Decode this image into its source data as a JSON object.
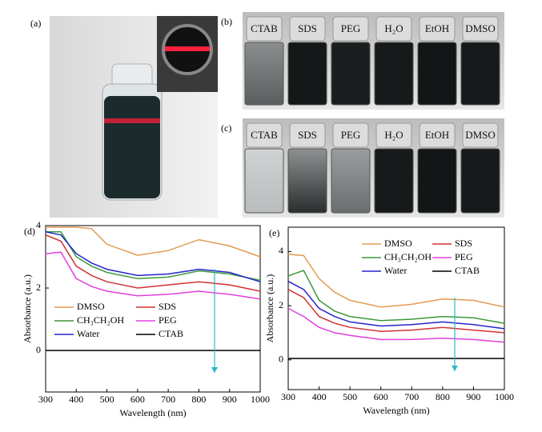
{
  "panels": {
    "a": "(a)",
    "b": "(b)",
    "c": "(c)"
  },
  "vials_b": [
    "CTAB",
    "SDS",
    "PEG",
    "H₂O",
    "EtOH",
    "DMSO"
  ],
  "vials_c": [
    "CTAB",
    "SDS",
    "PEG",
    "H₂O",
    "EtOH",
    "DMSO"
  ],
  "chart_data": [
    {
      "type": "line",
      "panel_label": "(d)",
      "xlabel": "Wavelength (nm)",
      "ylabel": "Absorbance (a.u.)",
      "x": [
        300,
        350,
        400,
        450,
        500,
        600,
        700,
        800,
        900,
        1000
      ],
      "xlim": [
        300,
        1000
      ],
      "xticks": [
        300,
        400,
        500,
        600,
        700,
        800,
        900,
        1000
      ],
      "ylim": [
        -1.33,
        4
      ],
      "yticks": [
        0,
        2,
        4
      ],
      "series": [
        {
          "name": "DMSO",
          "color": "#e39a52",
          "values": [
            3.95,
            3.95,
            3.95,
            3.9,
            3.4,
            3.05,
            3.2,
            3.55,
            3.35,
            3.0
          ]
        },
        {
          "name": "SDS",
          "color": "#d03232",
          "values": [
            3.7,
            3.5,
            2.7,
            2.4,
            2.2,
            2.0,
            2.1,
            2.2,
            2.1,
            1.9
          ]
        },
        {
          "name": "CH₃CH₂OH",
          "color": "#3a9a3a",
          "values": [
            3.8,
            3.8,
            3.0,
            2.7,
            2.5,
            2.3,
            2.35,
            2.55,
            2.45,
            2.25
          ]
        },
        {
          "name": "PEG",
          "color": "#e040e0",
          "values": [
            3.1,
            3.15,
            2.3,
            2.05,
            1.9,
            1.75,
            1.8,
            1.9,
            1.8,
            1.65
          ]
        },
        {
          "name": "Water",
          "color": "#2424cc",
          "values": [
            3.8,
            3.7,
            3.1,
            2.8,
            2.6,
            2.4,
            2.45,
            2.6,
            2.5,
            2.2
          ]
        },
        {
          "name": "CTAB",
          "color": "#000000",
          "values": [
            0,
            0,
            0,
            0,
            0,
            0,
            0,
            0,
            0,
            0
          ]
        }
      ]
    },
    {
      "type": "line",
      "panel_label": "(e)",
      "xlabel": "Wavelength (nm)",
      "ylabel": "Absorbance (a.u.)",
      "x": [
        300,
        350,
        400,
        450,
        500,
        600,
        700,
        800,
        900,
        1000
      ],
      "xlim": [
        300,
        1000
      ],
      "xticks": [
        300,
        400,
        500,
        600,
        700,
        800,
        900,
        1000
      ],
      "ylim": [
        -1.1,
        4.9
      ],
      "yticks": [
        0,
        2,
        4
      ],
      "series": [
        {
          "name": "DMSO",
          "color": "#e39a52",
          "values": [
            3.9,
            3.85,
            3.0,
            2.5,
            2.2,
            1.95,
            2.05,
            2.25,
            2.2,
            1.95
          ]
        },
        {
          "name": "SDS",
          "color": "#d03232",
          "values": [
            2.6,
            2.3,
            1.6,
            1.35,
            1.2,
            1.05,
            1.1,
            1.2,
            1.1,
            1.0
          ]
        },
        {
          "name": "CH₃CH₂OH",
          "color": "#3a9a3a",
          "values": [
            3.1,
            3.3,
            2.2,
            1.8,
            1.6,
            1.45,
            1.5,
            1.6,
            1.55,
            1.35
          ]
        },
        {
          "name": "PEG",
          "color": "#e040e0",
          "values": [
            1.9,
            1.6,
            1.2,
            1.0,
            0.9,
            0.75,
            0.75,
            0.8,
            0.75,
            0.65
          ]
        },
        {
          "name": "Water",
          "color": "#2424cc",
          "values": [
            2.9,
            2.6,
            1.9,
            1.6,
            1.4,
            1.25,
            1.3,
            1.4,
            1.3,
            1.15
          ]
        },
        {
          "name": "CTAB",
          "color": "#000000",
          "values": [
            0.05,
            0.05,
            0.05,
            0.05,
            0.05,
            0.05,
            0.05,
            0.05,
            0.05,
            0.05
          ]
        }
      ]
    }
  ]
}
